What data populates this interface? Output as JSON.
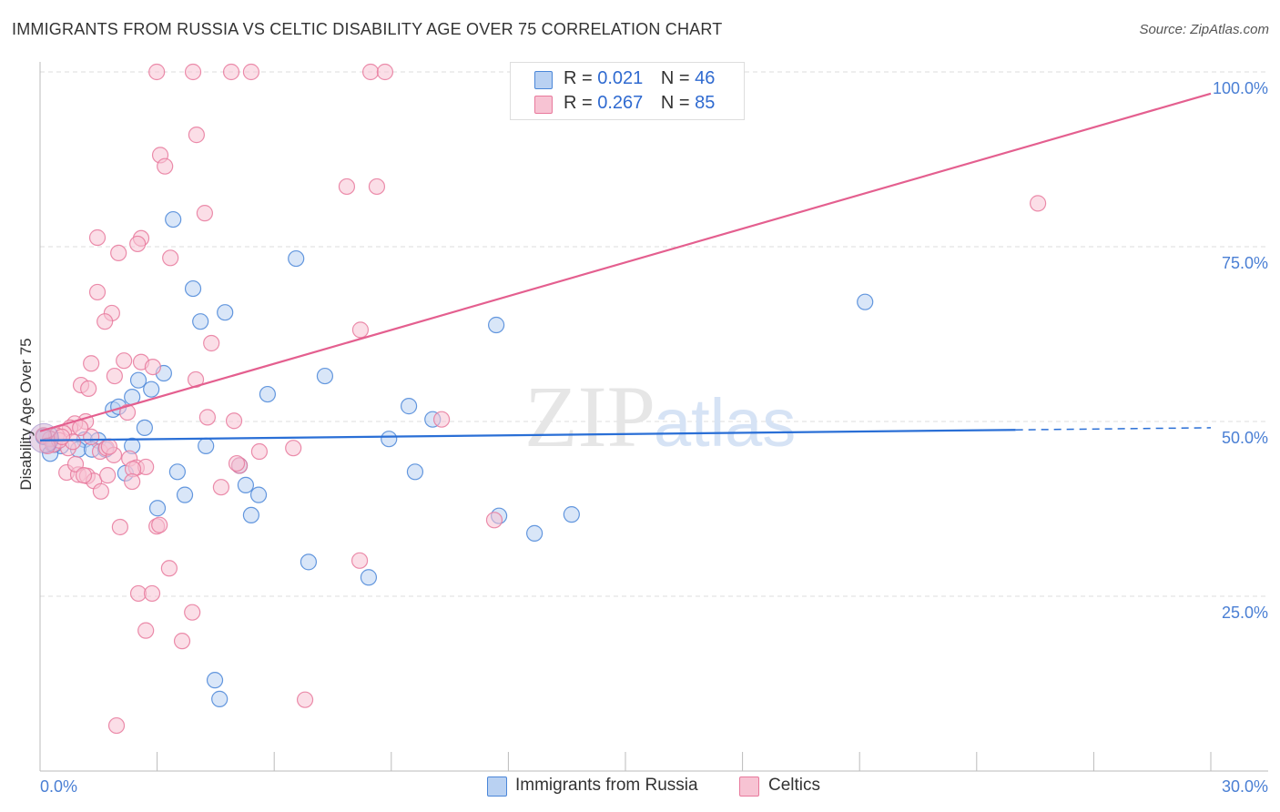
{
  "title": "IMMIGRANTS FROM RUSSIA VS CELTIC DISABILITY AGE OVER 75 CORRELATION CHART",
  "source": "Source: ZipAtlas.com",
  "watermark": "ZIPatlas",
  "chart_data": {
    "type": "scatter",
    "title": "IMMIGRANTS FROM RUSSIA VS CELTIC DISABILITY AGE OVER 75 CORRELATION CHART",
    "xlabel": "",
    "ylabel": "Disability Age Over 75",
    "xlim": [
      0,
      30
    ],
    "ylim": [
      0,
      100
    ],
    "x_tick_labels": [
      "0.0%",
      "30.0%"
    ],
    "y_tick_labels": [
      "100.0%",
      "75.0%",
      "50.0%",
      "25.0%"
    ],
    "y_ticks": [
      100,
      75,
      50,
      25
    ],
    "grid": true,
    "legend_placement": "top-center",
    "legend": [
      {
        "r_label": "R =",
        "r": "0.021",
        "n_label": "N =",
        "n": "46"
      },
      {
        "r_label": "R =",
        "r": "0.267",
        "n_label": "N =",
        "n": "85"
      }
    ],
    "series": [
      {
        "name": "Immigrants from Russia",
        "color": "#4a86d8",
        "fill": "#b9d1f2",
        "trend": {
          "x": [
            0,
            30
          ],
          "y": [
            47.3,
            49.1
          ],
          "solid_until": 25
        },
        "points": [
          [
            3.41,
            78.9
          ],
          [
            3.92,
            69.0
          ],
          [
            6.56,
            73.3
          ],
          [
            4.11,
            64.3
          ],
          [
            4.74,
            65.6
          ],
          [
            11.69,
            63.8
          ],
          [
            21.14,
            67.1
          ],
          [
            2.52,
            55.9
          ],
          [
            3.17,
            56.9
          ],
          [
            2.85,
            54.6
          ],
          [
            2.36,
            53.5
          ],
          [
            1.87,
            51.7
          ],
          [
            2.01,
            52.1
          ],
          [
            2.68,
            49.1
          ],
          [
            5.83,
            53.9
          ],
          [
            7.3,
            56.5
          ],
          [
            9.45,
            52.2
          ],
          [
            10.06,
            50.3
          ],
          [
            8.94,
            47.5
          ],
          [
            9.61,
            42.8
          ],
          [
            4.25,
            46.5
          ],
          [
            3.52,
            42.8
          ],
          [
            2.19,
            42.6
          ],
          [
            5.11,
            43.7
          ],
          [
            5.27,
            40.9
          ],
          [
            3.71,
            39.5
          ],
          [
            5.6,
            39.5
          ],
          [
            3.01,
            37.6
          ],
          [
            5.41,
            36.6
          ],
          [
            11.76,
            36.5
          ],
          [
            12.67,
            34.0
          ],
          [
            13.62,
            36.7
          ],
          [
            6.88,
            29.9
          ],
          [
            8.42,
            27.7
          ],
          [
            4.48,
            13.0
          ],
          [
            4.6,
            10.3
          ],
          [
            1.14,
            47.4
          ],
          [
            1.49,
            47.3
          ],
          [
            0.54,
            46.5
          ],
          [
            0.98,
            46.0
          ],
          [
            1.33,
            46.0
          ],
          [
            1.68,
            46.0
          ],
          [
            0.26,
            45.4
          ],
          [
            0.09,
            47.8
          ],
          [
            0.37,
            46.7
          ],
          [
            2.36,
            46.5
          ]
        ]
      },
      {
        "name": "Celtics",
        "color": "#e8799c",
        "fill": "#f7c3d3",
        "trend": {
          "x": [
            0,
            30
          ],
          "y": [
            48.6,
            96.9
          ],
          "solid_until": 30
        },
        "points": [
          [
            2.99,
            100
          ],
          [
            3.92,
            100
          ],
          [
            4.9,
            100
          ],
          [
            5.41,
            100
          ],
          [
            8.47,
            100
          ],
          [
            8.84,
            100
          ],
          [
            4.01,
            91.0
          ],
          [
            3.08,
            88.1
          ],
          [
            3.2,
            86.5
          ],
          [
            7.86,
            83.6
          ],
          [
            8.63,
            83.6
          ],
          [
            25.57,
            81.2
          ],
          [
            4.22,
            79.8
          ],
          [
            1.47,
            76.3
          ],
          [
            2.59,
            76.2
          ],
          [
            2.5,
            75.4
          ],
          [
            2.01,
            74.1
          ],
          [
            3.34,
            73.4
          ],
          [
            1.47,
            68.5
          ],
          [
            1.84,
            65.5
          ],
          [
            1.66,
            64.3
          ],
          [
            4.39,
            61.2
          ],
          [
            8.21,
            63.1
          ],
          [
            1.31,
            58.3
          ],
          [
            2.15,
            58.7
          ],
          [
            2.59,
            58.5
          ],
          [
            2.89,
            57.8
          ],
          [
            1.91,
            56.5
          ],
          [
            3.99,
            56.0
          ],
          [
            1.05,
            55.2
          ],
          [
            1.24,
            54.7
          ],
          [
            2.24,
            51.3
          ],
          [
            4.29,
            50.6
          ],
          [
            4.97,
            50.1
          ],
          [
            10.29,
            50.3
          ],
          [
            1.17,
            50.0
          ],
          [
            0.89,
            49.7
          ],
          [
            0.77,
            49.1
          ],
          [
            0.61,
            48.3
          ],
          [
            0.42,
            48.0
          ],
          [
            0.26,
            47.5
          ],
          [
            0.09,
            48.0
          ],
          [
            0.33,
            46.7
          ],
          [
            0.72,
            46.2
          ],
          [
            0.84,
            47.1
          ],
          [
            1.54,
            45.7
          ],
          [
            1.7,
            46.2
          ],
          [
            1.89,
            45.2
          ],
          [
            2.29,
            44.7
          ],
          [
            6.49,
            46.2
          ],
          [
            5.62,
            45.7
          ],
          [
            5.11,
            43.7
          ],
          [
            2.47,
            43.4
          ],
          [
            2.71,
            43.5
          ],
          [
            2.38,
            43.2
          ],
          [
            0.68,
            42.7
          ],
          [
            0.98,
            42.4
          ],
          [
            1.21,
            42.2
          ],
          [
            1.38,
            41.5
          ],
          [
            1.73,
            42.3
          ],
          [
            2.36,
            41.4
          ],
          [
            0.91,
            43.9
          ],
          [
            1.56,
            40.0
          ],
          [
            4.64,
            40.6
          ],
          [
            11.64,
            35.9
          ],
          [
            2.05,
            34.9
          ],
          [
            2.99,
            35.0
          ],
          [
            3.06,
            35.2
          ],
          [
            3.31,
            29.0
          ],
          [
            8.19,
            30.1
          ],
          [
            2.52,
            25.4
          ],
          [
            2.87,
            25.4
          ],
          [
            3.9,
            22.7
          ],
          [
            2.71,
            20.1
          ],
          [
            3.64,
            18.6
          ],
          [
            6.79,
            10.2
          ],
          [
            1.96,
            6.5
          ],
          [
            1.12,
            42.3
          ],
          [
            0.49,
            47.3
          ],
          [
            0.19,
            46.5
          ],
          [
            1.31,
            47.8
          ],
          [
            1.03,
            49.1
          ],
          [
            1.77,
            46.4
          ],
          [
            5.04,
            44.0
          ],
          [
            0.56,
            47.8
          ]
        ]
      }
    ]
  }
}
